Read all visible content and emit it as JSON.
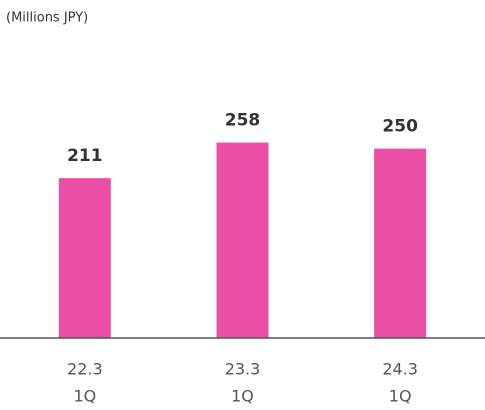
{
  "chart_data": {
    "type": "bar",
    "subtitle": "(Millions JPY)",
    "categories": [
      [
        "22.3",
        "1Q"
      ],
      [
        "23.3",
        "1Q"
      ],
      [
        "24.3",
        "1Q"
      ]
    ],
    "values": [
      211,
      258,
      250
    ],
    "color": "#ec4ea5",
    "ylim": [
      0,
      400
    ]
  }
}
